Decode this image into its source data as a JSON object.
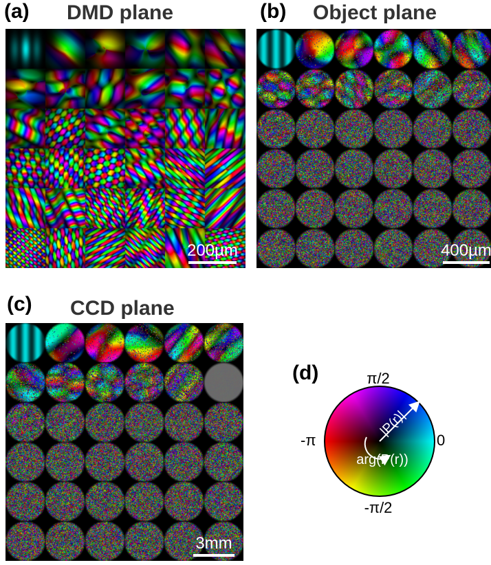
{
  "panels": {
    "a": {
      "label": "(a)",
      "title": "DMD plane",
      "scalebar": "200µm"
    },
    "b": {
      "label": "(b)",
      "title": "Object plane",
      "scalebar": "400µm"
    },
    "c": {
      "label": "(c)",
      "title": "CCD plane",
      "scalebar": "3mm"
    },
    "d": {
      "label": "(d)"
    }
  },
  "wheel": {
    "top": "π/2",
    "bottom": "-π/2",
    "left": "-π",
    "right": "0",
    "magnitude_label": "|P(r)|",
    "phase_label": "arg(P(r))"
  },
  "grid": {
    "rows": 6,
    "cols": 6
  }
}
